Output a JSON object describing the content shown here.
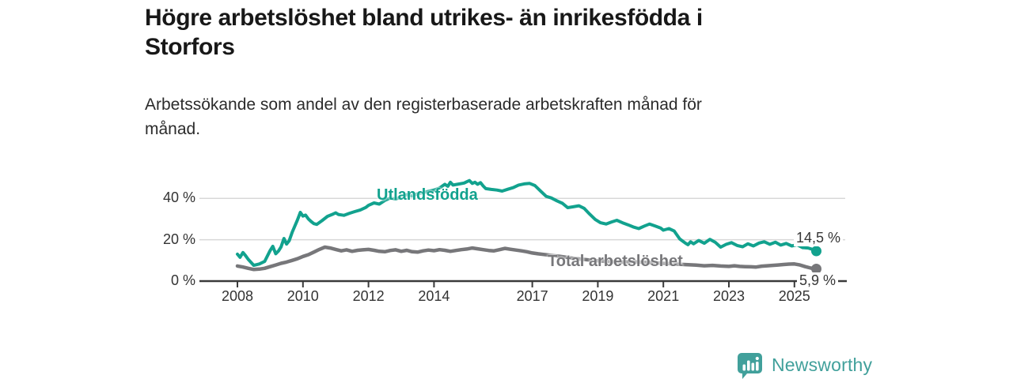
{
  "header": {
    "title": "Högre arbetslöshet bland utrikes- än inrikesfödda i Storfors",
    "title_lines": [
      "Högre arbetslöshet bland utrikes- än inrikesfödda i",
      "Storfors"
    ],
    "subtitle": "Arbetssökande som andel av den registerbaserade arbetskraften månad för månad.",
    "subtitle_lines": [
      "Arbetssökande som andel av den registerbaserade arbetskraften månad för",
      "månad."
    ]
  },
  "chart_data": {
    "type": "line",
    "title": "Högre arbetslöshet bland utrikes- än inrikesfödda i Storfors",
    "subtitle": "Arbetssökande som andel av den registerbaserade arbetskraften månad för månad.",
    "xlabel": "",
    "ylabel": "",
    "unit": "%",
    "xlim": [
      2008,
      2025.8
    ],
    "ylim": [
      0,
      52
    ],
    "grid": "horizontal",
    "legend_position": "inline-on-lines",
    "y_ticks": [
      {
        "label": "40 %",
        "value": 40
      },
      {
        "label": "20 %",
        "value": 20
      },
      {
        "label": "0 %",
        "value": 0
      }
    ],
    "x_ticks": [
      {
        "label": "2008",
        "year": 2008
      },
      {
        "label": "2010",
        "year": 2010
      },
      {
        "label": "2012",
        "year": 2012
      },
      {
        "label": "2014",
        "year": 2014
      },
      {
        "label": "2017",
        "year": 2017
      },
      {
        "label": "2019",
        "year": 2019
      },
      {
        "label": "2021",
        "year": 2021
      },
      {
        "label": "2023",
        "year": 2023
      },
      {
        "label": "2025",
        "year": 2025
      }
    ],
    "series": [
      {
        "name": "Total arbetslöshet",
        "color": "#77777a",
        "end_label": "5,9 %",
        "end_value": 5.9,
        "points": [
          [
            2008.0,
            7.3
          ],
          [
            2008.17,
            6.8
          ],
          [
            2008.33,
            6.2
          ],
          [
            2008.5,
            5.6
          ],
          [
            2008.67,
            5.8
          ],
          [
            2008.83,
            6.2
          ],
          [
            2009.0,
            7.0
          ],
          [
            2009.17,
            7.8
          ],
          [
            2009.33,
            8.6
          ],
          [
            2009.5,
            9.2
          ],
          [
            2009.67,
            10.0
          ],
          [
            2009.83,
            10.8
          ],
          [
            2010.0,
            11.9
          ],
          [
            2010.17,
            12.8
          ],
          [
            2010.33,
            14.0
          ],
          [
            2010.5,
            15.3
          ],
          [
            2010.67,
            16.4
          ],
          [
            2010.83,
            16.0
          ],
          [
            2011.0,
            15.3
          ],
          [
            2011.17,
            14.6
          ],
          [
            2011.33,
            15.1
          ],
          [
            2011.5,
            14.4
          ],
          [
            2011.67,
            14.9
          ],
          [
            2011.83,
            15.1
          ],
          [
            2012.0,
            15.3
          ],
          [
            2012.17,
            14.9
          ],
          [
            2012.33,
            14.4
          ],
          [
            2012.5,
            14.2
          ],
          [
            2012.67,
            14.8
          ],
          [
            2012.83,
            15.1
          ],
          [
            2013.0,
            14.4
          ],
          [
            2013.17,
            14.9
          ],
          [
            2013.33,
            14.2
          ],
          [
            2013.5,
            14.0
          ],
          [
            2013.67,
            14.6
          ],
          [
            2013.83,
            15.0
          ],
          [
            2014.0,
            14.7
          ],
          [
            2014.17,
            15.2
          ],
          [
            2014.33,
            14.9
          ],
          [
            2014.5,
            14.4
          ],
          [
            2014.67,
            14.8
          ],
          [
            2014.83,
            15.2
          ],
          [
            2015.0,
            15.5
          ],
          [
            2015.17,
            16.0
          ],
          [
            2015.33,
            15.6
          ],
          [
            2015.5,
            15.2
          ],
          [
            2015.67,
            14.8
          ],
          [
            2015.83,
            14.6
          ],
          [
            2016.0,
            15.2
          ],
          [
            2016.17,
            15.8
          ],
          [
            2016.33,
            15.4
          ],
          [
            2016.5,
            15.0
          ],
          [
            2016.67,
            14.6
          ],
          [
            2016.83,
            14.2
          ],
          [
            2017.0,
            13.6
          ],
          [
            2017.17,
            13.2
          ],
          [
            2017.33,
            12.9
          ],
          [
            2017.5,
            12.6
          ],
          [
            2017.67,
            12.3
          ],
          [
            2017.83,
            12.0
          ],
          [
            2018.0,
            11.6
          ],
          [
            2018.25,
            11.0
          ],
          [
            2018.5,
            10.6
          ],
          [
            2018.75,
            10.2
          ],
          [
            2019.0,
            9.8
          ],
          [
            2019.25,
            9.5
          ],
          [
            2019.5,
            9.3
          ],
          [
            2019.75,
            9.2
          ],
          [
            2020.0,
            9.4
          ],
          [
            2020.25,
            9.2
          ],
          [
            2020.5,
            9.0
          ],
          [
            2020.75,
            8.8
          ],
          [
            2021.0,
            8.6
          ],
          [
            2021.25,
            8.4
          ],
          [
            2021.5,
            8.1
          ],
          [
            2021.75,
            7.9
          ],
          [
            2022.0,
            7.7
          ],
          [
            2022.25,
            7.4
          ],
          [
            2022.5,
            7.6
          ],
          [
            2022.75,
            7.3
          ],
          [
            2023.0,
            7.1
          ],
          [
            2023.17,
            7.4
          ],
          [
            2023.33,
            7.1
          ],
          [
            2023.5,
            7.0
          ],
          [
            2023.67,
            6.9
          ],
          [
            2023.83,
            6.8
          ],
          [
            2024.0,
            7.2
          ],
          [
            2024.17,
            7.4
          ],
          [
            2024.33,
            7.6
          ],
          [
            2024.5,
            7.8
          ],
          [
            2024.67,
            8.0
          ],
          [
            2024.83,
            8.2
          ],
          [
            2025.0,
            8.3
          ],
          [
            2025.17,
            7.8
          ],
          [
            2025.33,
            7.0
          ],
          [
            2025.5,
            6.3
          ],
          [
            2025.67,
            5.9
          ]
        ]
      },
      {
        "name": "Utlandsfödda",
        "color": "#12a28e",
        "end_label": "14,5 %",
        "end_value": 14.5,
        "points": [
          [
            2008.0,
            13.0
          ],
          [
            2008.08,
            11.5
          ],
          [
            2008.17,
            13.8
          ],
          [
            2008.25,
            12.3
          ],
          [
            2008.33,
            10.5
          ],
          [
            2008.5,
            7.6
          ],
          [
            2008.67,
            8.3
          ],
          [
            2008.83,
            9.5
          ],
          [
            2009.0,
            14.8
          ],
          [
            2009.08,
            16.8
          ],
          [
            2009.17,
            13.2
          ],
          [
            2009.25,
            14.5
          ],
          [
            2009.33,
            16.5
          ],
          [
            2009.42,
            20.6
          ],
          [
            2009.5,
            17.9
          ],
          [
            2009.58,
            19.5
          ],
          [
            2009.67,
            23.5
          ],
          [
            2009.83,
            29.5
          ],
          [
            2009.92,
            33.2
          ],
          [
            2010.0,
            31.4
          ],
          [
            2010.08,
            31.9
          ],
          [
            2010.17,
            30.0
          ],
          [
            2010.25,
            28.8
          ],
          [
            2010.33,
            27.8
          ],
          [
            2010.42,
            27.4
          ],
          [
            2010.58,
            29.2
          ],
          [
            2010.75,
            31.3
          ],
          [
            2010.92,
            32.4
          ],
          [
            2011.0,
            33.0
          ],
          [
            2011.08,
            32.2
          ],
          [
            2011.25,
            31.8
          ],
          [
            2011.42,
            32.8
          ],
          [
            2011.58,
            33.6
          ],
          [
            2011.75,
            34.4
          ],
          [
            2011.92,
            35.6
          ],
          [
            2012.0,
            36.6
          ],
          [
            2012.17,
            37.8
          ],
          [
            2012.33,
            37.2
          ],
          [
            2012.5,
            39.0
          ],
          [
            2012.67,
            40.2
          ],
          [
            2012.83,
            39.6
          ],
          [
            2013.0,
            40.8
          ],
          [
            2013.17,
            41.8
          ],
          [
            2013.33,
            41.2
          ],
          [
            2013.5,
            42.2
          ],
          [
            2013.67,
            42.8
          ],
          [
            2013.83,
            43.4
          ],
          [
            2014.0,
            44.0
          ],
          [
            2014.17,
            45.0
          ],
          [
            2014.33,
            46.8
          ],
          [
            2014.42,
            45.8
          ],
          [
            2014.5,
            47.8
          ],
          [
            2014.58,
            46.4
          ],
          [
            2014.75,
            46.9
          ],
          [
            2014.92,
            47.4
          ],
          [
            2015.0,
            48.0
          ],
          [
            2015.08,
            48.6
          ],
          [
            2015.17,
            47.2
          ],
          [
            2015.25,
            47.8
          ],
          [
            2015.33,
            46.8
          ],
          [
            2015.42,
            47.6
          ],
          [
            2015.5,
            46.0
          ],
          [
            2015.58,
            44.7
          ],
          [
            2015.75,
            44.3
          ],
          [
            2015.92,
            44.0
          ],
          [
            2016.08,
            43.5
          ],
          [
            2016.25,
            44.4
          ],
          [
            2016.42,
            45.2
          ],
          [
            2016.58,
            46.4
          ],
          [
            2016.75,
            47.0
          ],
          [
            2016.92,
            47.2
          ],
          [
            2017.08,
            46.2
          ],
          [
            2017.25,
            43.6
          ],
          [
            2017.42,
            41.0
          ],
          [
            2017.58,
            40.2
          ],
          [
            2017.75,
            38.8
          ],
          [
            2017.92,
            37.6
          ],
          [
            2018.08,
            35.5
          ],
          [
            2018.25,
            35.9
          ],
          [
            2018.42,
            36.4
          ],
          [
            2018.58,
            35.2
          ],
          [
            2018.75,
            32.4
          ],
          [
            2018.92,
            29.8
          ],
          [
            2019.08,
            28.2
          ],
          [
            2019.25,
            27.6
          ],
          [
            2019.42,
            28.6
          ],
          [
            2019.58,
            29.4
          ],
          [
            2019.75,
            28.2
          ],
          [
            2019.92,
            27.2
          ],
          [
            2020.08,
            26.2
          ],
          [
            2020.25,
            25.4
          ],
          [
            2020.42,
            26.6
          ],
          [
            2020.58,
            27.6
          ],
          [
            2020.75,
            26.6
          ],
          [
            2020.92,
            25.6
          ],
          [
            2021.0,
            24.6
          ],
          [
            2021.17,
            25.4
          ],
          [
            2021.33,
            24.2
          ],
          [
            2021.5,
            20.4
          ],
          [
            2021.67,
            18.4
          ],
          [
            2021.75,
            17.6
          ],
          [
            2021.83,
            19.0
          ],
          [
            2021.92,
            18.0
          ],
          [
            2022.08,
            19.6
          ],
          [
            2022.25,
            18.3
          ],
          [
            2022.42,
            20.2
          ],
          [
            2022.58,
            18.8
          ],
          [
            2022.75,
            16.4
          ],
          [
            2022.92,
            17.8
          ],
          [
            2023.08,
            18.6
          ],
          [
            2023.25,
            17.2
          ],
          [
            2023.42,
            16.6
          ],
          [
            2023.58,
            18.0
          ],
          [
            2023.75,
            17.0
          ],
          [
            2023.92,
            18.4
          ],
          [
            2024.08,
            19.0
          ],
          [
            2024.25,
            17.8
          ],
          [
            2024.42,
            18.8
          ],
          [
            2024.58,
            17.4
          ],
          [
            2024.75,
            18.2
          ],
          [
            2024.92,
            17.0
          ],
          [
            2025.08,
            17.6
          ],
          [
            2025.25,
            16.2
          ],
          [
            2025.42,
            16.0
          ],
          [
            2025.58,
            15.2
          ],
          [
            2025.67,
            14.5
          ]
        ]
      }
    ]
  },
  "footer": {
    "brand": "Newsworthy",
    "brand_color": "#41a09b",
    "logo_icon": "bar-chart-speech-bubble-icon"
  }
}
